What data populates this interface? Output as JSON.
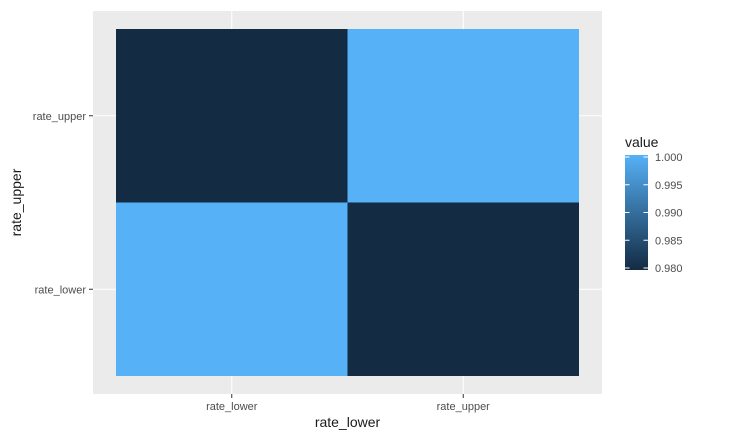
{
  "chart_data": {
    "type": "heatmap",
    "x_categories": [
      "rate_lower",
      "rate_upper"
    ],
    "y_categories": [
      "rate_lower",
      "rate_upper"
    ],
    "xlabel": "rate_lower",
    "ylabel": "rate_upper",
    "cells": [
      {
        "x": "rate_lower",
        "y": "rate_upper",
        "value": 0.98
      },
      {
        "x": "rate_upper",
        "y": "rate_upper",
        "value": 1.0
      },
      {
        "x": "rate_lower",
        "y": "rate_lower",
        "value": 1.0
      },
      {
        "x": "rate_upper",
        "y": "rate_lower",
        "value": 0.98
      }
    ],
    "legend": {
      "title": "value",
      "position": "right",
      "ticks": [
        "1.000",
        "0.995",
        "0.990",
        "0.985",
        "0.980"
      ],
      "tick_values": [
        1.0,
        0.995,
        0.99,
        0.985,
        0.98
      ]
    },
    "color_scale": {
      "low": "#132B43",
      "high": "#56B1F7",
      "limits": [
        0.98,
        1.0
      ]
    },
    "panel_background": "#EBEBEB",
    "grid": true
  }
}
